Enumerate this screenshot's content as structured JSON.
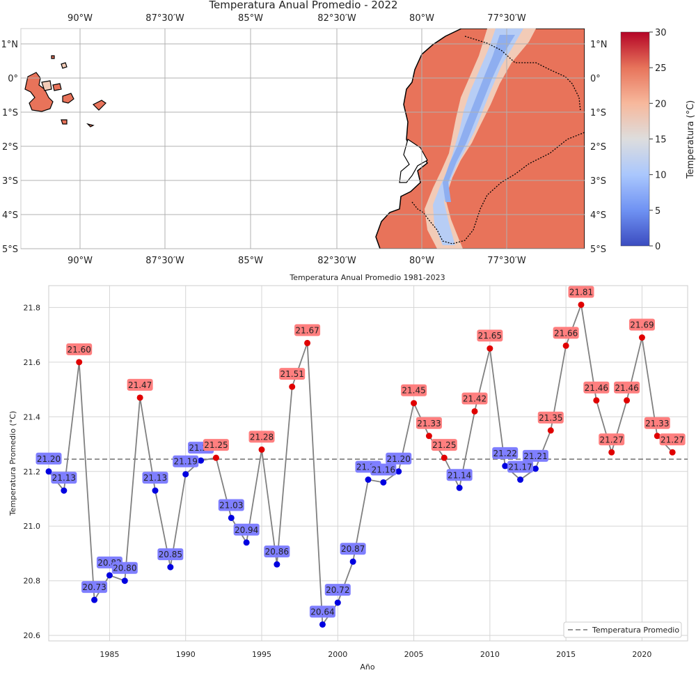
{
  "map": {
    "title": "Temperatura Anual Promedio - 2022",
    "lon_labels": [
      "90°W",
      "87°30′W",
      "85°W",
      "82°30′W",
      "80°W",
      "77°30′W"
    ],
    "lat_labels": [
      "1°N",
      "0°",
      "1°S",
      "2°S",
      "3°S",
      "4°S",
      "5°S"
    ],
    "colorbar": {
      "label": "Temperatura (°C)",
      "ticks": [
        "0",
        "5",
        "10",
        "15",
        "20",
        "25",
        "30"
      ],
      "colormap": [
        "#3b4cc0",
        "#6f92f3",
        "#aac7fd",
        "#dddddd",
        "#f7b89c",
        "#e7745b",
        "#b40426"
      ]
    },
    "coast_color": "#000000"
  },
  "chart_data": {
    "type": "line",
    "title": "Temperatura Anual Promedio 1981-2023",
    "xlabel": "Año",
    "ylabel": "Temperatura Promedio (°C)",
    "xlim": [
      1981,
      2023
    ],
    "ylim": [
      20.58,
      21.88
    ],
    "x_ticks": [
      1985,
      1990,
      1995,
      2000,
      2005,
      2010,
      2015,
      2020
    ],
    "y_ticks": [
      20.6,
      20.8,
      21.0,
      21.2,
      21.4,
      21.6,
      21.8
    ],
    "y_tick_labels": [
      "20.6",
      "20.8",
      "21.0",
      "21.2",
      "21.4",
      "21.6",
      "21.8"
    ],
    "grid": true,
    "mean": 21.245,
    "legend": {
      "label": "Temperatura Promedio",
      "placement": "bottom-right"
    },
    "colors": {
      "line": "#808080",
      "above": "#e00000",
      "below": "#0000e0",
      "above_box": "#ff7f7f",
      "below_box": "#7f7fff",
      "mean": "#707070"
    },
    "x": [
      1981,
      1982,
      1983,
      1984,
      1985,
      1986,
      1987,
      1988,
      1989,
      1990,
      1991,
      1992,
      1993,
      1994,
      1995,
      1996,
      1997,
      1998,
      1999,
      2000,
      2001,
      2002,
      2003,
      2004,
      2005,
      2006,
      2007,
      2008,
      2009,
      2010,
      2011,
      2012,
      2013,
      2014,
      2015,
      2016,
      2017,
      2018,
      2019,
      2020,
      2021,
      2022
    ],
    "values": [
      21.2,
      21.13,
      21.6,
      20.73,
      20.82,
      20.8,
      21.47,
      21.13,
      20.85,
      21.19,
      21.24,
      21.25,
      21.03,
      20.94,
      21.28,
      20.86,
      21.51,
      21.67,
      20.64,
      20.72,
      20.87,
      21.17,
      21.16,
      21.2,
      21.45,
      21.33,
      21.25,
      21.14,
      21.42,
      21.65,
      21.22,
      21.17,
      21.21,
      21.35,
      21.66,
      21.81,
      21.46,
      21.27,
      21.46,
      21.69,
      21.33,
      21.27
    ],
    "labels": [
      "21.20",
      "21.13",
      "21.60",
      "20.73",
      "20.82",
      "20.80",
      "21.47",
      "21.13",
      "20.85",
      "21.19",
      "21.24",
      "21.25",
      "21.03",
      "20.94",
      "21.28",
      "20.86",
      "21.51",
      "21.67",
      "20.64",
      "20.72",
      "20.87",
      "21.17",
      "21.16",
      "21.20",
      "21.45",
      "21.33",
      "21.25",
      "21.14",
      "21.42",
      "21.65",
      "21.22",
      "21.17",
      "21.21",
      "21.35",
      "21.66",
      "21.81",
      "21.46",
      "21.27",
      "21.46",
      "21.69",
      "21.33",
      "21.27"
    ]
  }
}
